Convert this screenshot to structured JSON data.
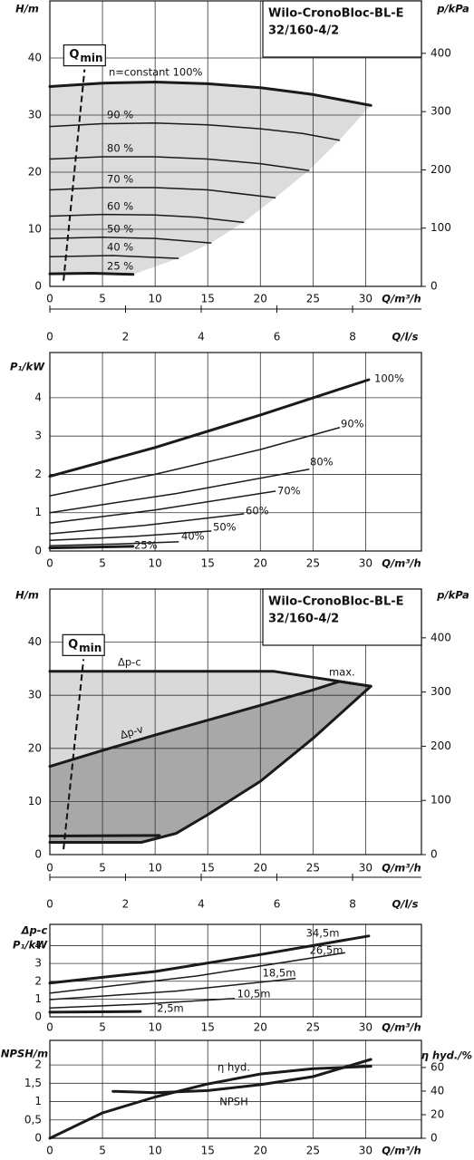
{
  "chart_data": [
    {
      "type": "line",
      "title": "Wilo-CronoBloc-BL-E",
      "subtitle": "32/160-4/2",
      "xlabel": "Q/m³/h",
      "ylabel": "H/m",
      "y2label": "p/kPa",
      "xlim": [
        0,
        35.3
      ],
      "ylim": [
        0,
        50
      ],
      "y2lim": [
        0,
        490
      ],
      "xticks": [
        0,
        5,
        10,
        15,
        20,
        25,
        30
      ],
      "yticks": [
        0,
        10,
        20,
        30,
        40
      ],
      "y2ticks": [
        0,
        100,
        200,
        300,
        400
      ],
      "grid": true,
      "envelope_color": "#dcdcdc",
      "qmin": {
        "symbol": "Q",
        "subscript": "min",
        "x": [
          1.3,
          3.3
        ],
        "values": [
          1,
          38
        ]
      },
      "series": [
        {
          "name": "n=constant 100%",
          "color": "#1a1a1a",
          "linewidth": 3,
          "x": [
            0,
            5,
            10,
            15,
            20,
            25,
            30.5
          ],
          "values": [
            35,
            35.6,
            35.8,
            35.5,
            34.8,
            33.6,
            31.7
          ]
        },
        {
          "name": "90 %",
          "color": "#1a1a1a",
          "linewidth": 1.5,
          "x": [
            0,
            5,
            10,
            15,
            20,
            24,
            27.5
          ],
          "values": [
            28,
            28.5,
            28.6,
            28.3,
            27.6,
            26.8,
            25.6
          ]
        },
        {
          "name": "80 %",
          "color": "#1a1a1a",
          "linewidth": 1.5,
          "x": [
            0,
            5,
            10,
            15,
            20,
            24.6
          ],
          "values": [
            22.3,
            22.7,
            22.7,
            22.3,
            21.5,
            20.3
          ]
        },
        {
          "name": "70 %",
          "color": "#1a1a1a",
          "linewidth": 1.5,
          "x": [
            0,
            5,
            10,
            15,
            21.4
          ],
          "values": [
            16.9,
            17.3,
            17.3,
            16.9,
            15.5
          ]
        },
        {
          "name": "60 %",
          "color": "#1a1a1a",
          "linewidth": 1.5,
          "x": [
            0,
            5,
            10,
            14,
            18.4
          ],
          "values": [
            12.3,
            12.6,
            12.5,
            12.1,
            11.2
          ]
        },
        {
          "name": "50 %",
          "color": "#1a1a1a",
          "linewidth": 1.5,
          "x": [
            0,
            5,
            10,
            15.3
          ],
          "values": [
            8.4,
            8.6,
            8.4,
            7.6
          ]
        },
        {
          "name": "40 %",
          "color": "#1a1a1a",
          "linewidth": 1.5,
          "x": [
            0,
            6,
            12.2
          ],
          "values": [
            5.2,
            5.4,
            4.9
          ]
        },
        {
          "name": "25 %",
          "color": "#1a1a1a",
          "linewidth": 3,
          "x": [
            0,
            4,
            7.9
          ],
          "values": [
            2.2,
            2.3,
            2.1
          ]
        }
      ]
    },
    {
      "type": "axis",
      "xlabel": "Q/l/s",
      "xlim": [
        0,
        9.82
      ],
      "xticks": [
        0,
        2,
        4,
        6,
        8
      ]
    },
    {
      "type": "line",
      "xlabel": "Q/m³/h",
      "ylabel": "P₁/kW",
      "xlim": [
        0,
        35.3
      ],
      "ylim": [
        0,
        5.18
      ],
      "xticks": [
        0,
        5,
        10,
        15,
        20,
        25,
        30
      ],
      "yticks": [
        0,
        1,
        2,
        3,
        4
      ],
      "grid": true,
      "series": [
        {
          "name": "100%",
          "color": "#1a1a1a",
          "linewidth": 3,
          "x": [
            0,
            10,
            20,
            30.3
          ],
          "values": [
            1.95,
            2.7,
            3.55,
            4.47
          ]
        },
        {
          "name": "90%",
          "color": "#1a1a1a",
          "linewidth": 1.5,
          "x": [
            0,
            10,
            20,
            27.5
          ],
          "values": [
            1.44,
            2.0,
            2.65,
            3.22
          ]
        },
        {
          "name": "80%",
          "color": "#1a1a1a",
          "linewidth": 1.5,
          "x": [
            0,
            12,
            24.6
          ],
          "values": [
            1.0,
            1.5,
            2.13
          ]
        },
        {
          "name": "70%",
          "color": "#1a1a1a",
          "linewidth": 1.5,
          "x": [
            0,
            10,
            21.4
          ],
          "values": [
            0.73,
            1.07,
            1.56
          ]
        },
        {
          "name": "60%",
          "color": "#1a1a1a",
          "linewidth": 1.5,
          "x": [
            0,
            9,
            18.4
          ],
          "values": [
            0.45,
            0.67,
            0.97
          ]
        },
        {
          "name": "50%",
          "color": "#1a1a1a",
          "linewidth": 1.5,
          "x": [
            0,
            8,
            15.3
          ],
          "values": [
            0.28,
            0.38,
            0.52
          ]
        },
        {
          "name": "40%",
          "color": "#1a1a1a",
          "linewidth": 1.5,
          "x": [
            0,
            6,
            12.2
          ],
          "values": [
            0.14,
            0.18,
            0.24
          ]
        },
        {
          "name": "25%",
          "color": "#1a1a1a",
          "linewidth": 3,
          "x": [
            0,
            7.9
          ],
          "values": [
            0.08,
            0.12
          ]
        }
      ]
    },
    {
      "type": "line",
      "title": "Wilo-CronoBloc-BL-E",
      "subtitle": "32/160-4/2",
      "xlabel": "Q/m³/h",
      "ylabel": "H/m",
      "y2label": "p/kPa",
      "xlim": [
        0,
        35.3
      ],
      "ylim": [
        0,
        50
      ],
      "y2lim": [
        0,
        490
      ],
      "xticks": [
        0,
        5,
        10,
        15,
        20,
        25,
        30
      ],
      "yticks": [
        0,
        10,
        20,
        30,
        40
      ],
      "y2ticks": [
        0,
        100,
        200,
        300,
        400
      ],
      "grid": true,
      "area_colors": [
        "#d9d9d9",
        "#a8a8a8"
      ],
      "annotations": [
        "max."
      ],
      "qmin": {
        "symbol": "Q",
        "subscript": "min",
        "x": [
          1.3,
          3.2
        ],
        "values": [
          1,
          36.8
        ]
      },
      "series": [
        {
          "name": "Δp-c",
          "color": "#1a1a1a",
          "linewidth": 3,
          "x": [
            0,
            21.3,
            30.5
          ],
          "values": [
            34.5,
            34.5,
            31.7
          ]
        },
        {
          "name": "Δp-v",
          "color": "#1a1a1a",
          "linewidth": 3,
          "x": [
            0,
            5,
            10,
            15,
            20,
            25,
            27.5,
            30.5
          ],
          "values": [
            16.6,
            19.6,
            22.5,
            25.3,
            28.1,
            31,
            32.6,
            31.7
          ]
        },
        {
          "color": "#1a1a1a",
          "linewidth": 3,
          "x": [
            0,
            8.7,
            12,
            15,
            20,
            25,
            30.5
          ],
          "values": [
            2.3,
            2.3,
            4,
            7.5,
            13.8,
            21.9,
            31.7
          ]
        },
        {
          "color": "#1a1a1a",
          "linewidth": 3,
          "x": [
            0,
            10.4
          ],
          "values": [
            3.5,
            3.6
          ]
        }
      ]
    },
    {
      "type": "axis",
      "xlabel": "Q/l/s",
      "xlim": [
        0,
        9.82
      ],
      "xticks": [
        0,
        2,
        4,
        6,
        8
      ]
    },
    {
      "type": "line",
      "xlabel": "Q/m³/h",
      "ylabel": [
        "Δp-c",
        "P₁/kW"
      ],
      "xlim": [
        0,
        35.3
      ],
      "ylim": [
        0,
        5.2
      ],
      "xticks": [
        0,
        5,
        10,
        15,
        20,
        25,
        30
      ],
      "yticks": [
        0,
        1,
        2,
        3,
        4
      ],
      "grid": true,
      "series": [
        {
          "name": "34,5m",
          "color": "#1a1a1a",
          "linewidth": 3,
          "x": [
            0,
            10,
            20,
            30.3
          ],
          "values": [
            1.9,
            2.55,
            3.5,
            4.55
          ]
        },
        {
          "name": "26,5m",
          "color": "#1a1a1a",
          "linewidth": 1.5,
          "x": [
            0,
            14,
            28
          ],
          "values": [
            1.33,
            2.3,
            3.6
          ]
        },
        {
          "name": "18,5m",
          "color": "#1a1a1a",
          "linewidth": 1.5,
          "x": [
            0,
            12,
            23.3
          ],
          "values": [
            0.97,
            1.45,
            2.15
          ]
        },
        {
          "name": "10,5m",
          "color": "#1a1a1a",
          "linewidth": 1.5,
          "x": [
            0,
            9,
            17.5
          ],
          "values": [
            0.5,
            0.72,
            1.03
          ]
        },
        {
          "name": "2,5m",
          "color": "#1a1a1a",
          "linewidth": 3,
          "x": [
            0,
            8.6
          ],
          "values": [
            0.26,
            0.3
          ]
        }
      ]
    },
    {
      "type": "line",
      "xlabel": "Q/m³/h",
      "ylabel": "NPSH/m",
      "y2label": "η hyd./%",
      "xlim": [
        0,
        35.3
      ],
      "ylim": [
        0,
        2.67
      ],
      "y2lim": [
        0,
        83
      ],
      "xticks": [
        0,
        5,
        10,
        15,
        20,
        25,
        30
      ],
      "yticks": [
        0,
        {
          "value": 0.5,
          "label": "0,5"
        },
        1,
        {
          "value": 1.5,
          "label": "1,5"
        },
        2
      ],
      "y2ticks": [
        0,
        20,
        40,
        60
      ],
      "grid": true,
      "series": [
        {
          "name": "η hyd.",
          "axis": "y2",
          "color": "#1a1a1a",
          "linewidth": 3,
          "x": [
            0,
            5,
            10,
            15,
            20,
            25,
            30.5
          ],
          "values": [
            0,
            21.5,
            35,
            46,
            54.5,
            59,
            61
          ]
        },
        {
          "name": "NPSH",
          "color": "#1a1a1a",
          "linewidth": 3,
          "x": [
            6,
            10,
            15,
            20,
            25,
            30.5
          ],
          "values": [
            1.28,
            1.24,
            1.3,
            1.46,
            1.68,
            2.15
          ]
        }
      ]
    }
  ]
}
